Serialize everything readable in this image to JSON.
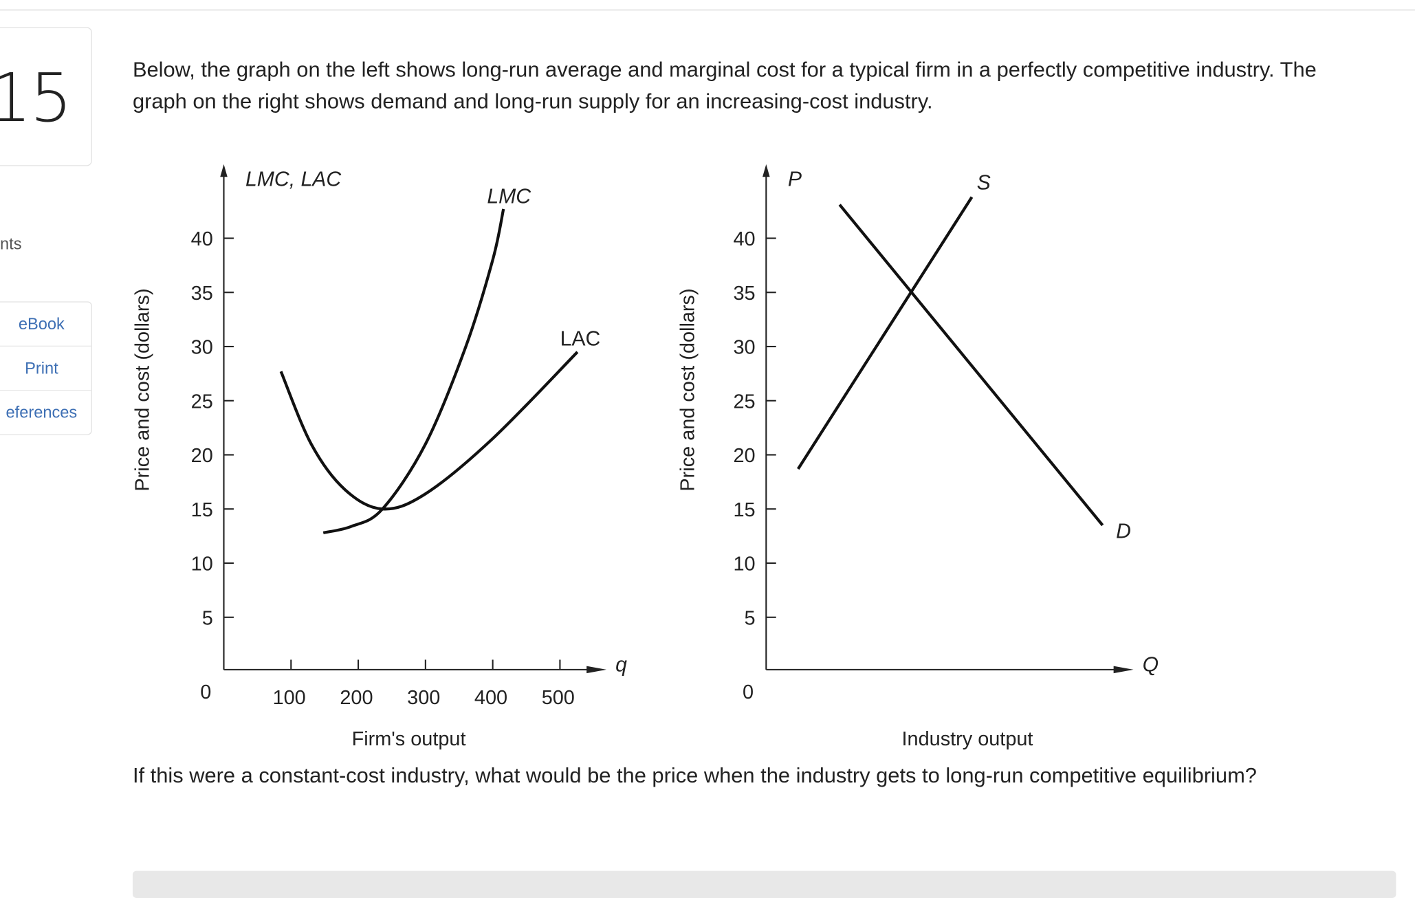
{
  "question_number": "15",
  "points_label": "nts",
  "tools": [
    {
      "label": "eBook",
      "icon": "ebook-icon"
    },
    {
      "label": "Print",
      "icon": "print-icon"
    },
    {
      "label": "eferences",
      "icon": "references-icon"
    }
  ],
  "intro_text": "Below, the graph on the left shows long-run average and marginal cost for a typical firm in a perfectly competitive industry. The graph on the right shows demand and long-run supply for an increasing-cost industry.",
  "question_text": "If this were a constant-cost industry, what would be the price when the industry gets to long-run competitive equilibrium?",
  "colors": {
    "text": "#222222",
    "link": "#3d6fb4",
    "curve": "#111111"
  },
  "chart_data": [
    {
      "type": "line",
      "title": "LMC, LAC",
      "xlabel": "Firm's output",
      "ylabel": "Price and cost (dollars)",
      "x_axis_symbol": "q",
      "xlim": [
        0,
        570
      ],
      "ylim": [
        0,
        46
      ],
      "xticks": [
        100,
        200,
        300,
        400,
        500
      ],
      "yticks": [
        5,
        10,
        15,
        20,
        25,
        30,
        35,
        40
      ],
      "origin_label": "0",
      "grid": false,
      "series": [
        {
          "name": "LMC",
          "italic": true,
          "points": [
            [
              148,
              12.8
            ],
            [
              190,
              13.4
            ],
            [
              236,
              15
            ],
            [
              300,
              21
            ],
            [
              360,
              30
            ],
            [
              400,
              38
            ],
            [
              416,
              42.7
            ]
          ]
        },
        {
          "name": "LAC",
          "italic": false,
          "points": [
            [
              85,
              27.7
            ],
            [
              130,
              21
            ],
            [
              180,
              16.8
            ],
            [
              236,
              15
            ],
            [
              300,
              16.4
            ],
            [
              400,
              21.5
            ],
            [
              526,
              29.5
            ]
          ]
        }
      ]
    },
    {
      "type": "line",
      "title": "P",
      "xlabel": "Industry output",
      "ylabel": "Price and cost (dollars)",
      "x_axis_symbol": "Q",
      "xlim": [
        0,
        100
      ],
      "ylim": [
        0,
        46
      ],
      "xticks": [],
      "yticks": [
        5,
        10,
        15,
        20,
        25,
        30,
        35,
        40
      ],
      "origin_label": "0",
      "grid": false,
      "series": [
        {
          "name": "S",
          "points": [
            [
              8.7,
              18.7
            ],
            [
              56,
              43.8
            ]
          ]
        },
        {
          "name": "D",
          "points": [
            [
              20,
              43.1
            ],
            [
              91.6,
              13.5
            ]
          ]
        }
      ]
    }
  ]
}
